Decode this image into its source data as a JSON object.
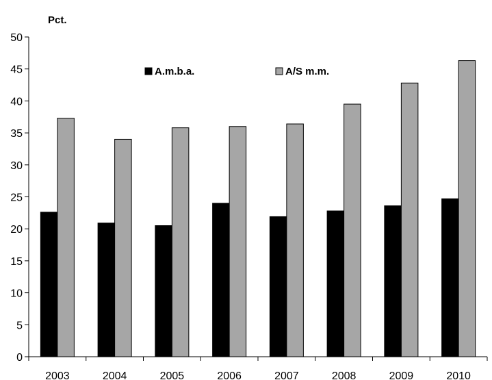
{
  "chart_data": {
    "type": "bar",
    "ylabel": "Pct.",
    "xlabel": "",
    "categories": [
      "2003",
      "2004",
      "2005",
      "2006",
      "2007",
      "2008",
      "2009",
      "2010"
    ],
    "series": [
      {
        "name": "A.m.b.a.",
        "color": "#000000",
        "values": [
          22.6,
          20.9,
          20.5,
          24.0,
          21.9,
          22.8,
          23.6,
          24.7
        ]
      },
      {
        "name": "A/S m.m.",
        "color": "#a6a6a6",
        "values": [
          37.3,
          34.0,
          35.8,
          36.0,
          36.4,
          39.5,
          42.8,
          46.3
        ]
      }
    ],
    "ylim": [
      0,
      50
    ],
    "ytick_step": 5,
    "yticks": [
      "0",
      "5",
      "10",
      "15",
      "20",
      "25",
      "30",
      "35",
      "40",
      "45",
      "50"
    ],
    "grid": false,
    "legend_position": "top-center"
  }
}
